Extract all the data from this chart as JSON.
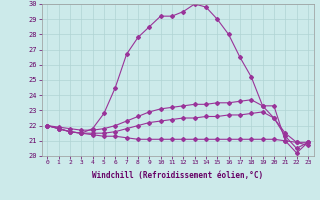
{
  "xlabel": "Windchill (Refroidissement éolien,°C)",
  "x": [
    0,
    1,
    2,
    3,
    4,
    5,
    6,
    7,
    8,
    9,
    10,
    11,
    12,
    13,
    14,
    15,
    16,
    17,
    18,
    19,
    20,
    21,
    22,
    23
  ],
  "series1": [
    22,
    21.8,
    21.6,
    21.5,
    21.4,
    21.3,
    21.3,
    21.2,
    21.1,
    21.1,
    21.1,
    21.1,
    21.1,
    21.1,
    21.1,
    21.1,
    21.1,
    21.1,
    21.1,
    21.1,
    21.1,
    21.0,
    20.9,
    20.7
  ],
  "series2": [
    22,
    21.8,
    21.6,
    21.5,
    21.5,
    21.5,
    21.6,
    21.8,
    22.0,
    22.2,
    22.3,
    22.4,
    22.5,
    22.5,
    22.6,
    22.6,
    22.7,
    22.7,
    22.8,
    22.9,
    22.5,
    21.5,
    20.9,
    20.9
  ],
  "series3": [
    22,
    21.9,
    21.8,
    21.7,
    21.7,
    21.8,
    22.0,
    22.3,
    22.6,
    22.9,
    23.1,
    23.2,
    23.3,
    23.4,
    23.4,
    23.5,
    23.5,
    23.6,
    23.7,
    23.3,
    22.5,
    21.3,
    20.5,
    20.9
  ],
  "series4": [
    22,
    21.8,
    21.6,
    21.5,
    21.8,
    22.8,
    24.5,
    26.7,
    27.8,
    28.5,
    29.2,
    29.2,
    29.5,
    30.0,
    29.8,
    29.0,
    28.0,
    26.5,
    25.2,
    23.3,
    23.3,
    21.0,
    20.2,
    20.9
  ],
  "line_color": "#993399",
  "bg_color": "#cceaea",
  "grid_color": "#b0d4d4",
  "ylim": [
    20,
    30
  ],
  "yticks": [
    20,
    21,
    22,
    23,
    24,
    25,
    26,
    27,
    28,
    29,
    30
  ],
  "fig_bg": "#cceaea"
}
